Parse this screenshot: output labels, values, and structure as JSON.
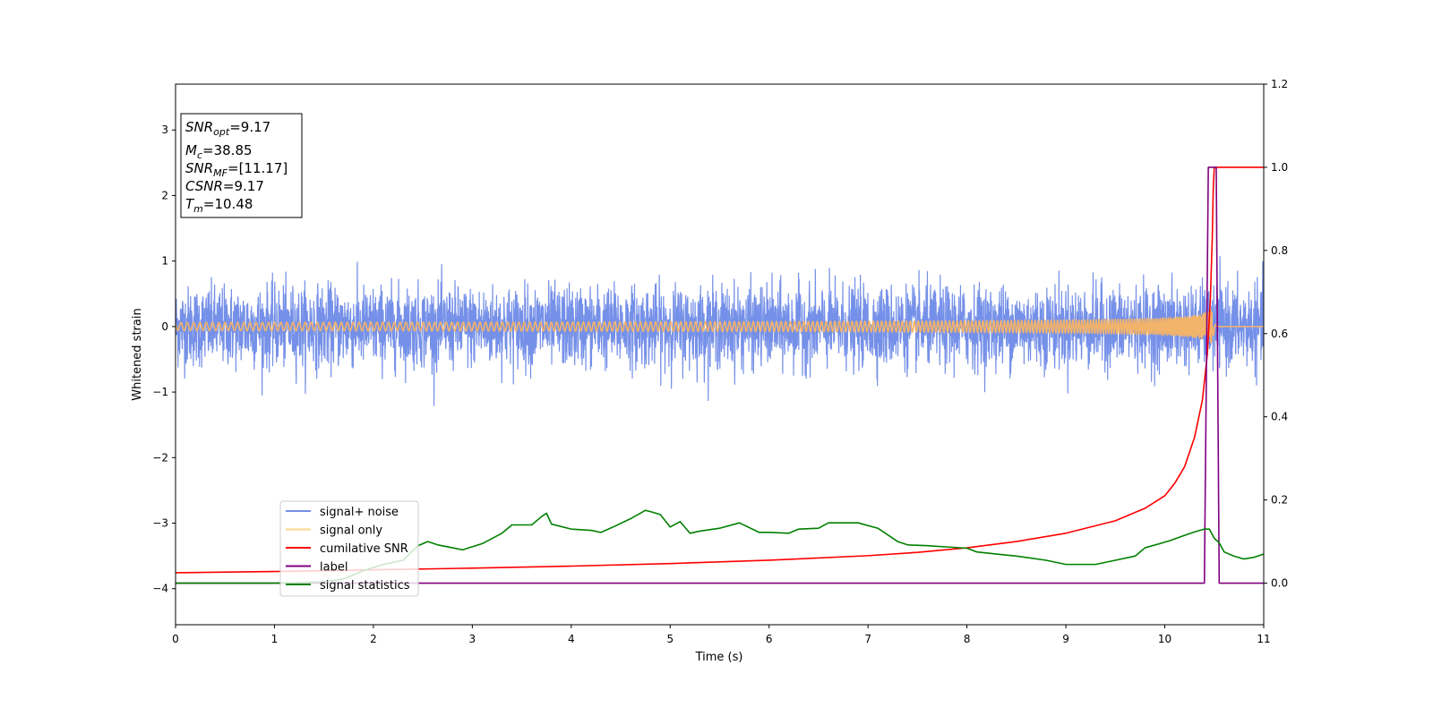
{
  "chart_data": {
    "type": "line",
    "xlabel": "Time (s)",
    "ylabel": "Whitened strain",
    "xlim": [
      0,
      11
    ],
    "ylim": [
      -4.55,
      3.7
    ],
    "y2lim": [
      -0.1,
      1.2
    ],
    "xticks": [
      "0",
      "1",
      "2",
      "3",
      "4",
      "5",
      "6",
      "7",
      "8",
      "9",
      "10",
      "11"
    ],
    "yticks": [
      "−4",
      "−3",
      "−2",
      "−1",
      "0",
      "1",
      "2",
      "3"
    ],
    "y2ticks": [
      "0.0",
      "0.2",
      "0.4",
      "0.6",
      "0.8",
      "1.0",
      "1.2"
    ],
    "annotation": [
      {
        "sym": "SNR",
        "sub": "opt",
        "val": "=9.17"
      },
      {
        "sym": "M",
        "sub": "c",
        "val": "=38.85"
      },
      {
        "sym": "SNR",
        "sub": "MF",
        "val": "=[11.17]"
      },
      {
        "sym": "CSNR",
        "sub": "",
        "val": "=9.17"
      },
      {
        "sym": "T",
        "sub": "m",
        "val": "=10.48"
      }
    ],
    "legend": {
      "placement": "lower left",
      "entries": [
        {
          "label": "signal+ noise",
          "color": "#7590e8"
        },
        {
          "label": "signal only",
          "color": "#fdd78a"
        },
        {
          "label": "cumilative SNR",
          "color": "#ff0000"
        },
        {
          "label": "label",
          "color": "#800080"
        },
        {
          "label": "signal statistics",
          "color": "#008000"
        }
      ]
    },
    "series": [
      {
        "name": "signal+ noise",
        "axis": "left",
        "kind": "noise",
        "mean": 0,
        "std": 0.3,
        "t_range": [
          0,
          11
        ],
        "color": "#7590e8"
      },
      {
        "name": "signal only",
        "axis": "left",
        "kind": "chirp",
        "merger_time": 10.48,
        "peak_amplitude": 0.3,
        "color": "#f2b36a"
      },
      {
        "name": "cumilative SNR",
        "axis": "right",
        "x": [
          0,
          1,
          2,
          3,
          4,
          5,
          6,
          7,
          7.5,
          8,
          8.5,
          9,
          9.5,
          9.8,
          10,
          10.1,
          10.2,
          10.3,
          10.38,
          10.43,
          10.46,
          10.48,
          10.49,
          10.5,
          11
        ],
        "y": [
          0.025,
          0.028,
          0.032,
          0.036,
          0.041,
          0.047,
          0.055,
          0.066,
          0.074,
          0.085,
          0.1,
          0.12,
          0.15,
          0.18,
          0.21,
          0.24,
          0.28,
          0.35,
          0.44,
          0.55,
          0.68,
          0.83,
          0.95,
          1.0,
          1.0
        ],
        "color": "#ff0000"
      },
      {
        "name": "label",
        "axis": "right",
        "x": [
          0,
          10.4,
          10.44,
          10.52,
          10.55,
          11
        ],
        "y": [
          0,
          0,
          1.0,
          1.0,
          0,
          0
        ],
        "color": "#800080"
      },
      {
        "name": "signal statistics",
        "axis": "right",
        "x": [
          0,
          1.0,
          1.5,
          1.7,
          1.9,
          2.1,
          2.3,
          2.45,
          2.55,
          2.65,
          2.8,
          2.9,
          3.1,
          3.3,
          3.4,
          3.6,
          3.7,
          3.75,
          3.8,
          4.0,
          4.2,
          4.3,
          4.45,
          4.6,
          4.75,
          4.8,
          4.9,
          5.0,
          5.1,
          5.2,
          5.3,
          5.5,
          5.7,
          5.9,
          6.0,
          6.2,
          6.3,
          6.5,
          6.6,
          6.75,
          6.9,
          7.1,
          7.3,
          7.4,
          7.6,
          7.8,
          8.0,
          8.1,
          8.3,
          8.5,
          8.8,
          9.0,
          9.3,
          9.5,
          9.7,
          9.8,
          9.95,
          10.05,
          10.2,
          10.3,
          10.4,
          10.45,
          10.5,
          10.55,
          10.6,
          10.7,
          10.8,
          10.9,
          11.0
        ],
        "y": [
          0.0,
          0.0,
          0.003,
          0.01,
          0.03,
          0.045,
          0.055,
          0.09,
          0.1,
          0.092,
          0.085,
          0.08,
          0.095,
          0.12,
          0.14,
          0.14,
          0.16,
          0.168,
          0.142,
          0.13,
          0.127,
          0.122,
          0.138,
          0.155,
          0.175,
          0.172,
          0.165,
          0.135,
          0.148,
          0.12,
          0.125,
          0.132,
          0.145,
          0.122,
          0.122,
          0.12,
          0.13,
          0.132,
          0.145,
          0.145,
          0.145,
          0.132,
          0.1,
          0.092,
          0.09,
          0.087,
          0.084,
          0.075,
          0.07,
          0.065,
          0.055,
          0.045,
          0.045,
          0.055,
          0.065,
          0.085,
          0.095,
          0.102,
          0.115,
          0.123,
          0.13,
          0.13,
          0.108,
          0.097,
          0.075,
          0.065,
          0.058,
          0.062,
          0.07
        ],
        "color": "#008000"
      }
    ]
  }
}
